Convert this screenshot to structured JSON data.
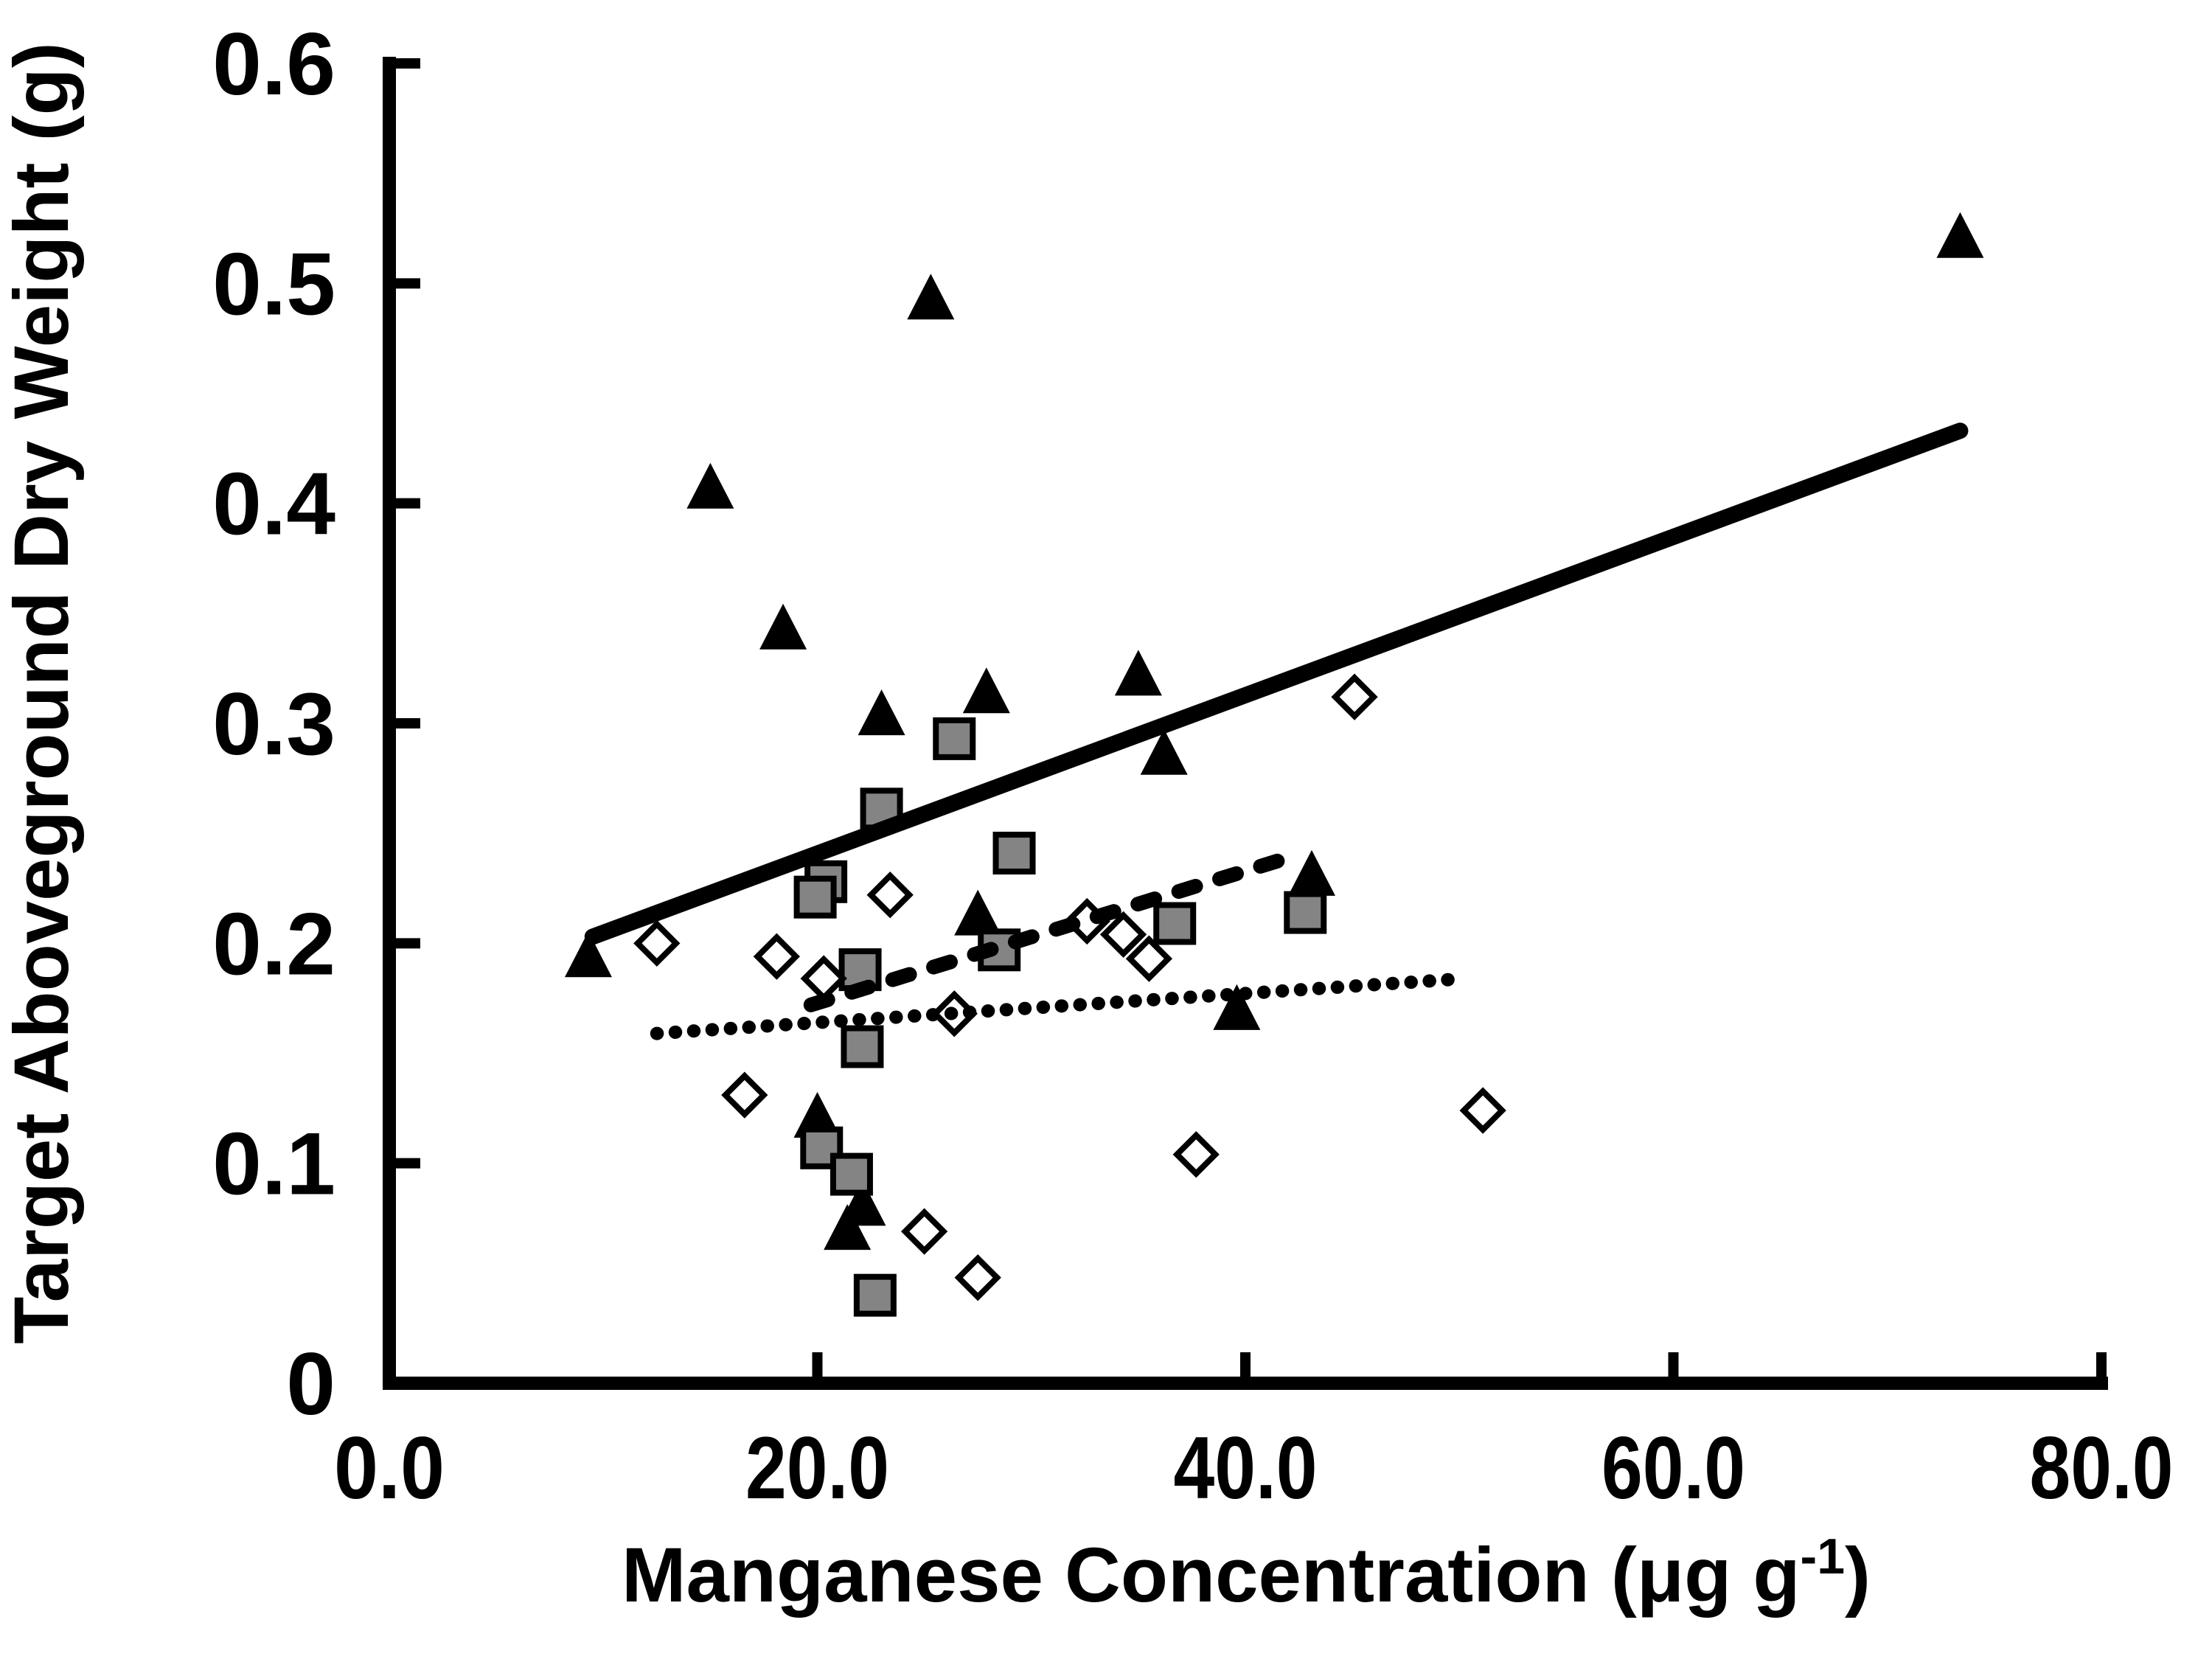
{
  "page": {
    "background": "#ffffff"
  },
  "chart_data": {
    "type": "scatter",
    "title": "",
    "xlabel": "Manganese Concentration (μg g-1)",
    "xlabel_parts": {
      "main": "Manganese Concentration (μg g",
      "superscript": "-1",
      "suffix": ")"
    },
    "ylabel": "Target Aboveground Dry Weight (g)",
    "xlim": [
      0.0,
      80.0
    ],
    "ylim": [
      0.0,
      0.6
    ],
    "grid": false,
    "legend_position": "none",
    "axis_color": "#000000",
    "marker_gray_fill": "#848484",
    "x_axis": {
      "tick_labels": [
        {
          "value": 0,
          "label": "0.0"
        },
        {
          "value": 20,
          "label": "20.0"
        },
        {
          "value": 40,
          "label": "40.0"
        },
        {
          "value": 60,
          "label": "60.0"
        },
        {
          "value": 80,
          "label": "80.0"
        }
      ],
      "ticks_drawn": [
        20,
        40,
        60,
        80
      ]
    },
    "y_axis": {
      "tick_labels": [
        {
          "value": 0.0,
          "label": "0"
        },
        {
          "value": 0.1,
          "label": "0.1"
        },
        {
          "value": 0.2,
          "label": "0.2"
        },
        {
          "value": 0.3,
          "label": "0.3"
        },
        {
          "value": 0.4,
          "label": "0.4"
        },
        {
          "value": 0.5,
          "label": "0.5"
        },
        {
          "value": 0.6,
          "label": "0.6"
        }
      ],
      "ticks_drawn": [
        0.1,
        0.2,
        0.3,
        0.4,
        0.5,
        0.6
      ]
    },
    "series": [
      {
        "name": "black-triangles",
        "marker": "filled-triangle",
        "fill": "#000000",
        "stroke": "none",
        "points": [
          [
            25.3,
            0.494
          ],
          [
            15.0,
            0.408
          ],
          [
            18.4,
            0.344
          ],
          [
            23.0,
            0.305
          ],
          [
            27.9,
            0.315
          ],
          [
            35.0,
            0.323
          ],
          [
            36.2,
            0.287
          ],
          [
            73.4,
            0.522
          ],
          [
            9.3,
            0.195
          ],
          [
            27.5,
            0.214
          ],
          [
            43.1,
            0.232
          ],
          [
            39.6,
            0.171
          ],
          [
            20.0,
            0.122
          ],
          [
            22.1,
            0.082
          ],
          [
            21.4,
            0.071
          ]
        ]
      },
      {
        "name": "gray-squares",
        "marker": "filled-square",
        "fill": "#848484",
        "stroke": "#000000",
        "points": [
          [
            26.4,
            0.293
          ],
          [
            23.0,
            0.261
          ],
          [
            20.4,
            0.228
          ],
          [
            19.9,
            0.221
          ],
          [
            29.2,
            0.241
          ],
          [
            28.5,
            0.197
          ],
          [
            36.7,
            0.209
          ],
          [
            42.8,
            0.214
          ],
          [
            22.0,
            0.188
          ],
          [
            22.1,
            0.153
          ],
          [
            20.2,
            0.107
          ],
          [
            21.6,
            0.095
          ],
          [
            22.7,
            0.04
          ]
        ]
      },
      {
        "name": "open-diamonds",
        "marker": "open-diamond",
        "fill": "#ffffff",
        "stroke": "#000000",
        "points": [
          [
            12.5,
            0.2
          ],
          [
            18.1,
            0.194
          ],
          [
            20.3,
            0.184
          ],
          [
            23.4,
            0.222
          ],
          [
            26.4,
            0.168
          ],
          [
            32.6,
            0.21
          ],
          [
            34.3,
            0.204
          ],
          [
            35.5,
            0.193
          ],
          [
            45.1,
            0.312
          ],
          [
            16.6,
            0.131
          ],
          [
            25.0,
            0.069
          ],
          [
            27.5,
            0.048
          ],
          [
            37.7,
            0.104
          ],
          [
            51.1,
            0.124
          ]
        ]
      }
    ],
    "trendlines": [
      {
        "name": "solid-trendline",
        "style": "solid",
        "points": [
          [
            9.5,
            0.203
          ],
          [
            73.4,
            0.433
          ]
        ]
      },
      {
        "name": "dashed-trendline",
        "style": "dashed",
        "points": [
          [
            19.7,
            0.172
          ],
          [
            41.7,
            0.238
          ]
        ]
      },
      {
        "name": "dotted-trendline",
        "style": "dotted",
        "points": [
          [
            12.5,
            0.159
          ],
          [
            50.3,
            0.184
          ]
        ]
      }
    ]
  }
}
